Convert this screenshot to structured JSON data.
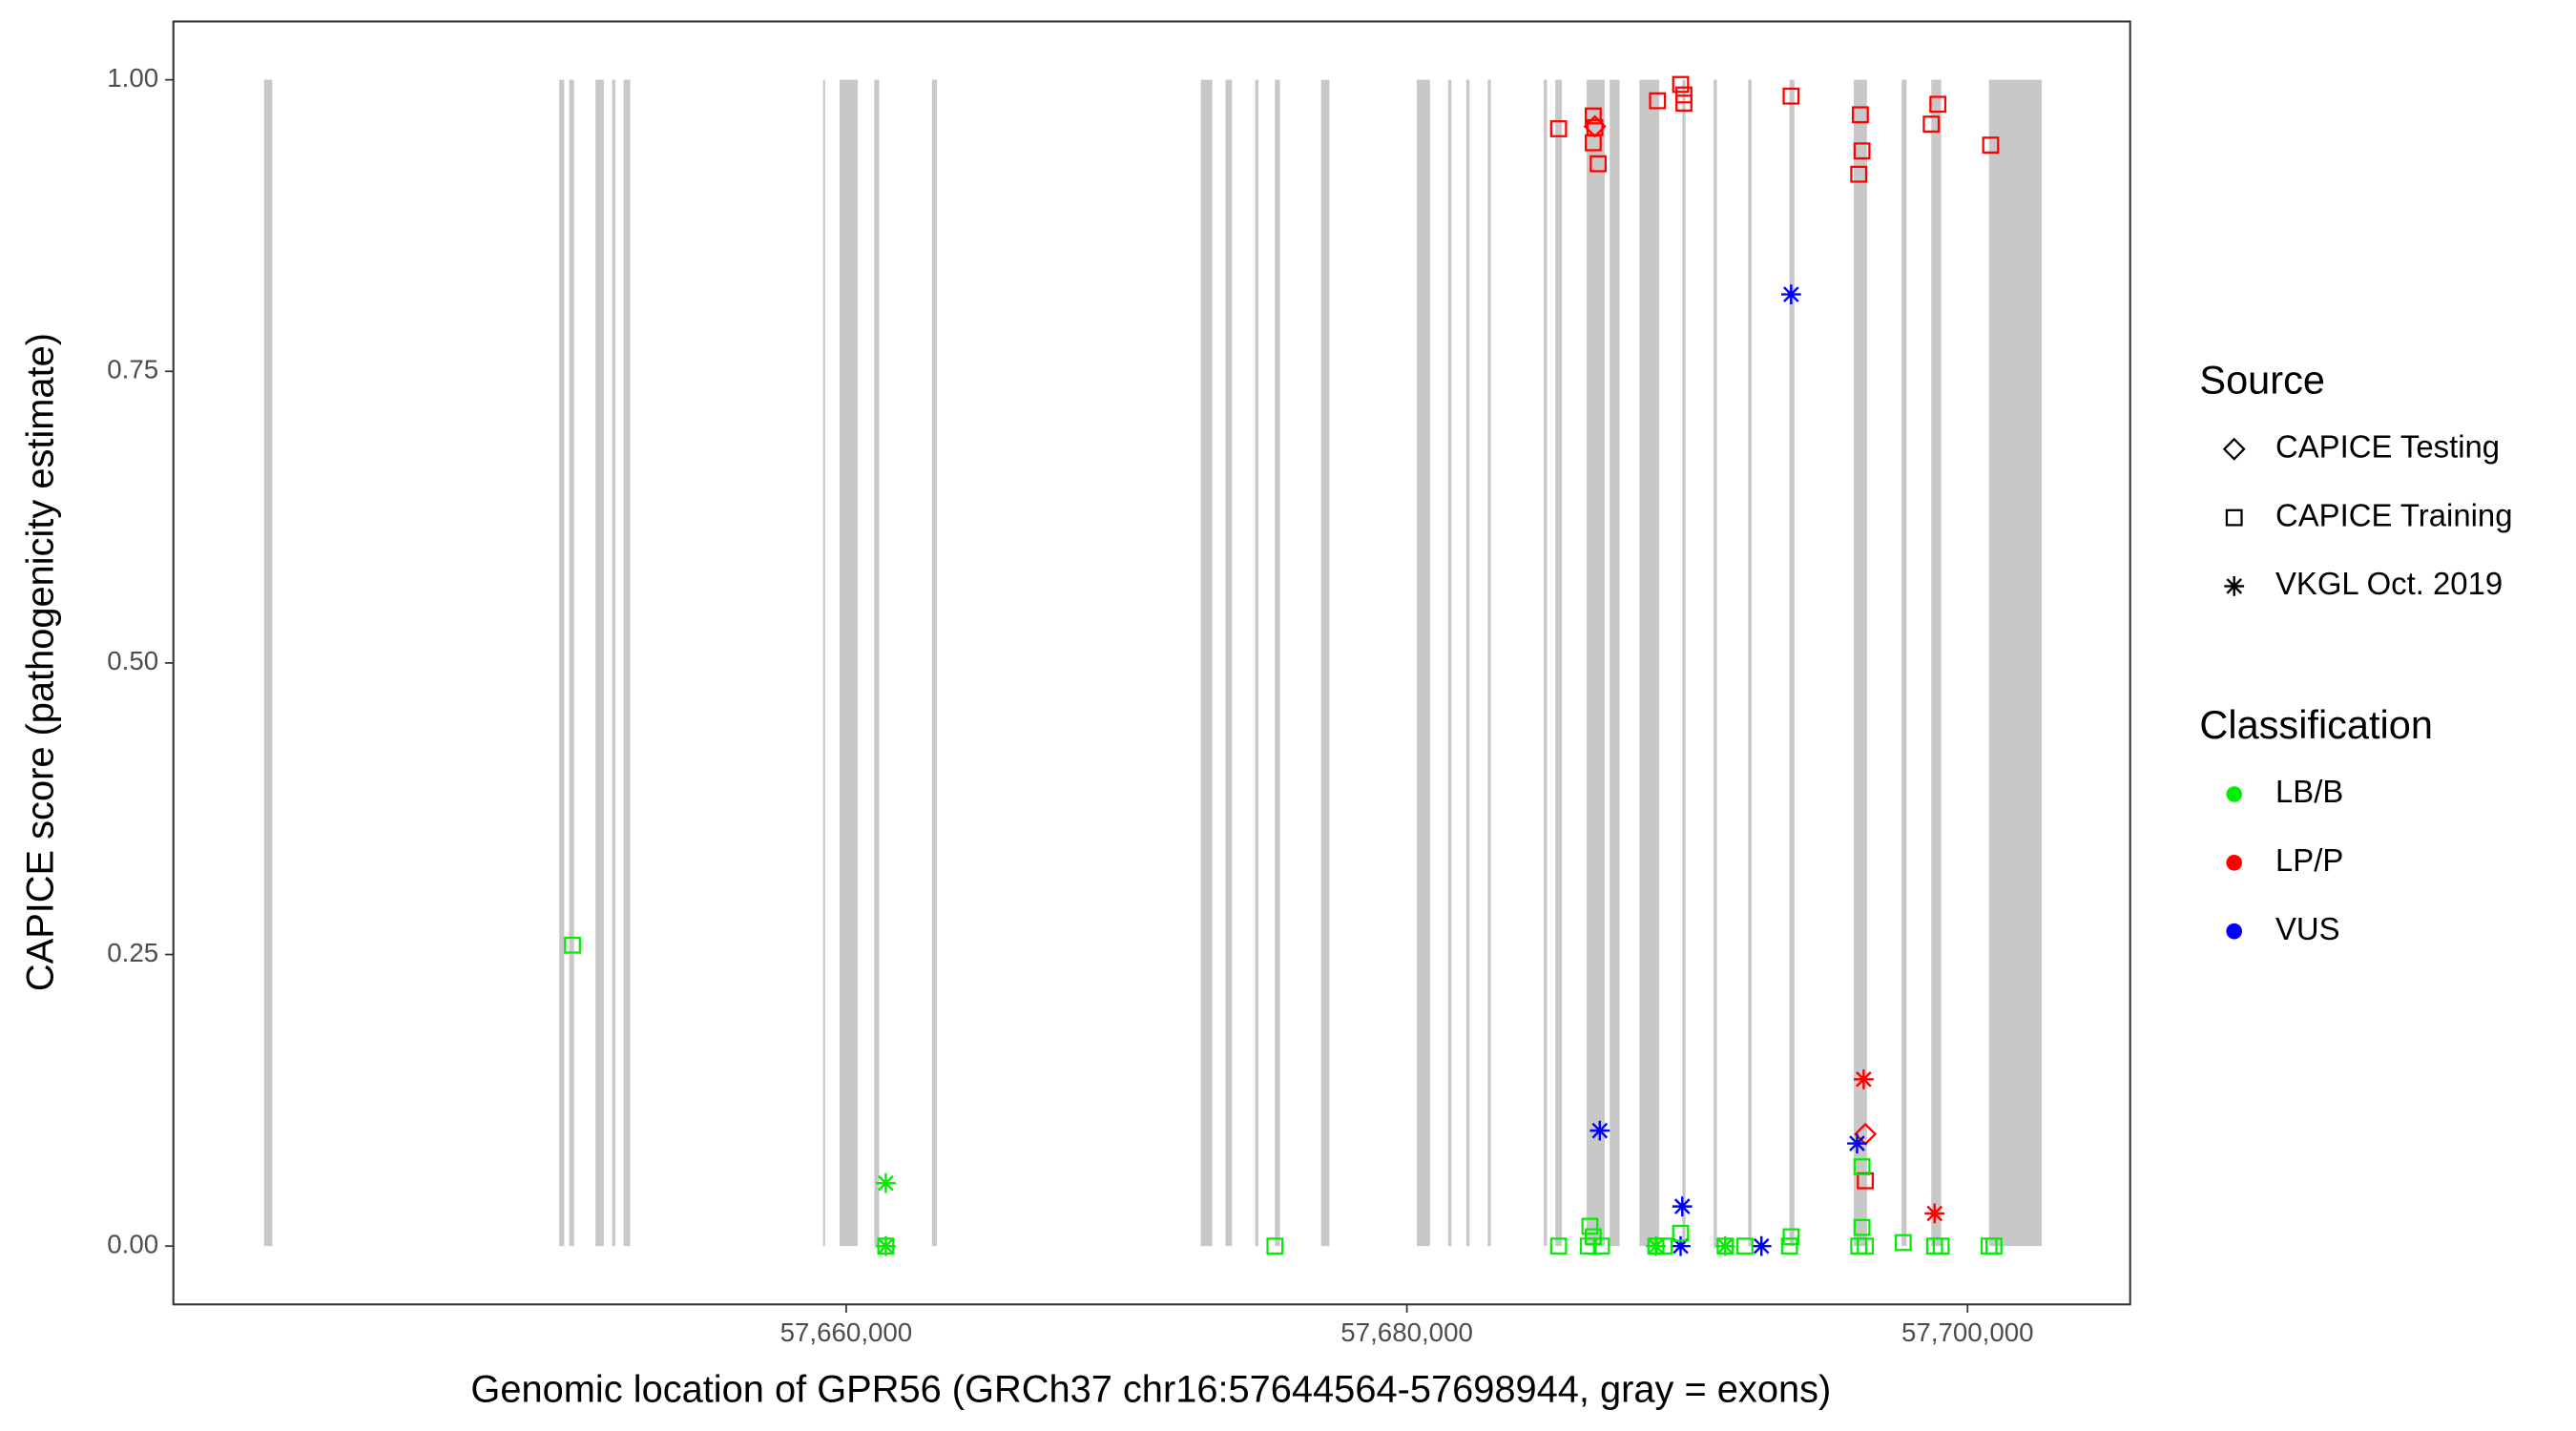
{
  "chart_data": {
    "type": "scatter",
    "x_label": "Genomic location of GPR56 (GRCh37 chr16:57644564-57698944, gray = exons)",
    "y_label": "CAPICE score (pathogenicity estimate)",
    "xlim": [
      57636000,
      57705800
    ],
    "ylim": [
      -0.05,
      1.05
    ],
    "xticks": [
      {
        "value": 57660000,
        "label": "57,660,000"
      },
      {
        "value": 57680000,
        "label": "57,680,000"
      },
      {
        "value": 57700000,
        "label": "57,700,000"
      }
    ],
    "yticks": [
      {
        "value": 0,
        "label": "0.00"
      },
      {
        "value": 0.25,
        "label": "0.25"
      },
      {
        "value": 0.5,
        "label": "0.50"
      },
      {
        "value": 0.75,
        "label": "0.75"
      },
      {
        "value": 1,
        "label": "1.00"
      }
    ],
    "grid": false,
    "exon_color": "#c8c8c8",
    "exons": [
      [
        57639235,
        57639530
      ],
      [
        57649765,
        57649941
      ],
      [
        57650118,
        57650294
      ],
      [
        57651059,
        57651353
      ],
      [
        57651647,
        57651765
      ],
      [
        57652059,
        57652294
      ],
      [
        57659176,
        57659235
      ],
      [
        57659765,
        57660412
      ],
      [
        57661000,
        57661176
      ],
      [
        57663059,
        57663235
      ],
      [
        57672647,
        57673059
      ],
      [
        57673529,
        57673765
      ],
      [
        57674588,
        57674706
      ],
      [
        57675294,
        57675471
      ],
      [
        57676941,
        57677235
      ],
      [
        57680353,
        57680824
      ],
      [
        57681471,
        57681588
      ],
      [
        57682118,
        57682235
      ],
      [
        57682882,
        57683000
      ],
      [
        57684882,
        57685000
      ],
      [
        57685294,
        57685529
      ],
      [
        57686412,
        57687059
      ],
      [
        57687235,
        57687588
      ],
      [
        57688294,
        57689000
      ],
      [
        57689824,
        57689941
      ],
      [
        57690941,
        57691059
      ],
      [
        57692176,
        57692294
      ],
      [
        57693647,
        57693824
      ],
      [
        57695941,
        57696412
      ],
      [
        57697647,
        57697824
      ],
      [
        57698706,
        57699059
      ],
      [
        57700765,
        57702647
      ]
    ],
    "legend": {
      "source": {
        "title": "Source",
        "items": [
          {
            "name": "CAPICE Testing",
            "shape": "diamond"
          },
          {
            "name": "CAPICE Training",
            "shape": "square"
          },
          {
            "name": "VKGL Oct. 2019",
            "shape": "star"
          }
        ]
      },
      "classification": {
        "title": "Classification",
        "items": [
          {
            "name": "LB/B",
            "color": "#00ee00"
          },
          {
            "name": "LP/P",
            "color": "#ff0000"
          },
          {
            "name": "VUS",
            "color": "#0000ff"
          }
        ]
      }
    },
    "series": [
      {
        "source": "CAPICE Training",
        "classification": "LP/P",
        "x": [
          57685412,
          57686647,
          57686706,
          57686647,
          57686824,
          57688941,
          57689765,
          57689882,
          57689882,
          57693706,
          57696176,
          57696235,
          57696118,
          57698706,
          57698941,
          57700824,
          57696353
        ],
        "values": [
          0.958,
          0.969,
          0.959,
          0.946,
          0.928,
          0.982,
          0.996,
          0.987,
          0.98,
          0.986,
          0.97,
          0.939,
          0.919,
          0.962,
          0.979,
          0.944,
          0.056
        ]
      },
      {
        "source": "CAPICE Testing",
        "classification": "LP/P",
        "x": [
          57686706,
          57696353
        ],
        "values": [
          0.96,
          0.096
        ]
      },
      {
        "source": "VKGL Oct. 2019",
        "classification": "LP/P",
        "x": [
          57696294,
          57698824
        ],
        "values": [
          0.143,
          0.028
        ]
      },
      {
        "source": "VKGL Oct. 2019",
        "classification": "VUS",
        "x": [
          57693706,
          57686882,
          57689824,
          57689765,
          57692647,
          57696059
        ],
        "values": [
          0.816,
          0.099,
          0.034,
          0,
          0,
          0.088
        ]
      },
      {
        "source": "CAPICE Training",
        "classification": "LB/B",
        "x": [
          57650235,
          57661412,
          57675294,
          57685412,
          57686529,
          57686647,
          57686471,
          57686941,
          57688882,
          57689176,
          57689765,
          57691353,
          57692059,
          57693706,
          57693647,
          57696118,
          57696235,
          57696353,
          57696235,
          57697706,
          57698824,
          57699059,
          57700765,
          57700941
        ],
        "values": [
          0.258,
          0,
          0,
          0,
          0.017,
          0.008,
          0,
          0,
          0,
          0,
          0.011,
          0,
          0,
          0.008,
          0,
          0,
          0.016,
          0,
          0.068,
          0.003,
          0,
          0,
          0,
          0
        ]
      },
      {
        "source": "VKGL Oct. 2019",
        "classification": "LB/B",
        "x": [
          57661412,
          57661412,
          57688882,
          57691353
        ],
        "values": [
          0.054,
          0,
          0,
          0
        ]
      }
    ]
  }
}
